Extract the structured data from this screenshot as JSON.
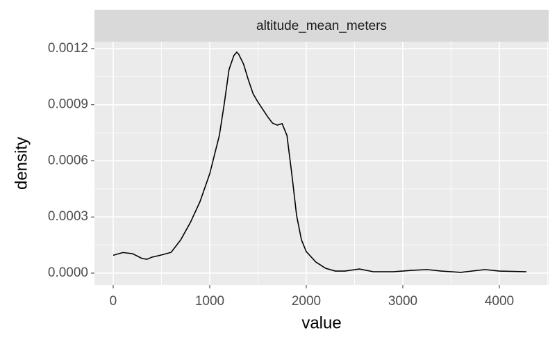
{
  "chart_data": {
    "type": "line",
    "facet_label": "altitude_mean_meters",
    "x_label": "value",
    "y_label": "density",
    "x": [
      0,
      100,
      200,
      300,
      350,
      400,
      500,
      600,
      700,
      800,
      900,
      1000,
      1100,
      1150,
      1200,
      1250,
      1280,
      1300,
      1350,
      1400,
      1450,
      1500,
      1600,
      1650,
      1700,
      1750,
      1800,
      1850,
      1900,
      1950,
      2000,
      2100,
      2200,
      2300,
      2400,
      2550,
      2700,
      2900,
      3100,
      3250,
      3400,
      3600,
      3850,
      4000,
      4280
    ],
    "series": [
      {
        "name": "altitude_mean_meters",
        "color": "#000000",
        "values": [
          9.5e-05,
          0.00011,
          0.000104,
          7.8e-05,
          7.4e-05,
          8.5e-05,
          9.7e-05,
          0.000111,
          0.000178,
          0.000271,
          0.000383,
          0.000531,
          0.000736,
          0.000903,
          0.001088,
          0.001163,
          0.001181,
          0.00117,
          0.001118,
          0.001033,
          0.000958,
          0.000914,
          0.000836,
          0.000802,
          0.000791,
          0.000799,
          0.000736,
          0.000531,
          0.000308,
          0.000178,
          0.000115,
          5.9e-05,
          2.6e-05,
          1.1e-05,
          1.1e-05,
          2.2e-05,
          7e-06,
          7e-06,
          1.5e-05,
          1.9e-05,
          1.1e-05,
          4e-06,
          1.9e-05,
          1.1e-05,
          7e-06
        ]
      }
    ],
    "xlim": [
      -194,
      4511
    ],
    "xticks": [
      0,
      1000,
      2000,
      3000,
      4000
    ],
    "ylim": [
      -6.32e-05,
      0.001237
    ],
    "yticks": [
      {
        "value": 0,
        "label": "0.0000"
      },
      {
        "value": 0.0003,
        "label": "0.0003"
      },
      {
        "value": 0.0006,
        "label": "0.0006"
      },
      {
        "value": 0.0009,
        "label": "0.0009"
      },
      {
        "value": 0.0012,
        "label": "0.0012"
      }
    ],
    "grid": true
  }
}
